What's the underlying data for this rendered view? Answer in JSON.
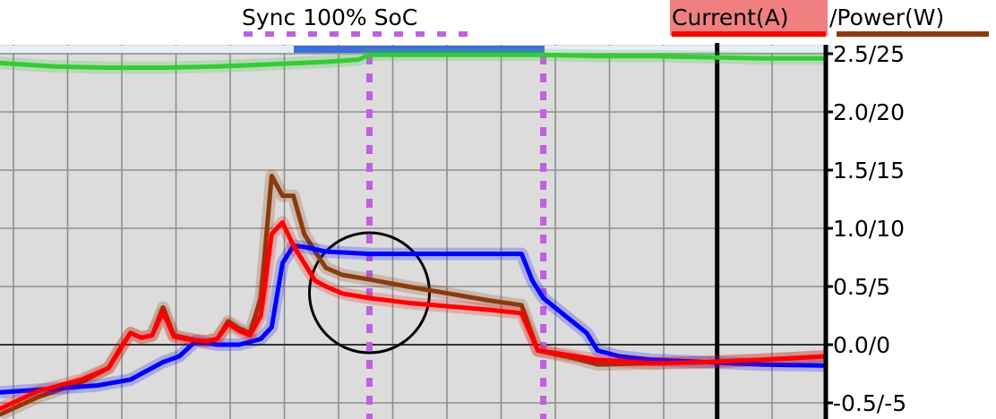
{
  "header": {
    "sync_label": "Sync 100% SoC",
    "legend_current": "Current(A)",
    "legend_power": "/Power(W)"
  },
  "colors": {
    "background": "#dcdcdc",
    "grid": "#8f8f8f",
    "soc": "#33cc33",
    "voltage": "#0000ff",
    "current": "#ff0000",
    "power": "#8b3a0f",
    "sync_marker": "#c060e0",
    "sync_bar": "#3a6fdc",
    "legend_highlight": "#f08080"
  },
  "chart_data": {
    "type": "line",
    "title": "",
    "y_tick_labels": [
      "2.5/25",
      "2.0/20",
      "1.5/15",
      "1.0/10",
      "0.5/5",
      "0.0/0",
      "-0.5/-5"
    ],
    "y_ticks": [
      2.5,
      2.0,
      1.5,
      1.0,
      0.5,
      0.0,
      -0.5
    ],
    "ylim": [
      -0.6,
      2.9
    ],
    "xlim": [
      0,
      15.2
    ],
    "grid": true,
    "sync_range": [
      6.8,
      10.0
    ],
    "now_marker": 13.2,
    "annotation_circle": {
      "x": 6.8,
      "y": 0.4
    },
    "series": [
      {
        "key": "soc",
        "x": [
          0,
          1,
          2,
          3,
          4,
          5,
          6,
          6.6,
          6.8,
          7.5,
          8,
          9,
          10,
          11,
          12,
          13,
          14,
          15.2
        ],
        "values": [
          2.42,
          2.39,
          2.38,
          2.38,
          2.39,
          2.41,
          2.43,
          2.45,
          2.49,
          2.49,
          2.49,
          2.49,
          2.49,
          2.48,
          2.48,
          2.47,
          2.46,
          2.46
        ]
      },
      {
        "key": "voltage",
        "x": [
          0,
          0.6,
          1.2,
          1.8,
          2.4,
          3.0,
          3.3,
          3.6,
          4.0,
          4.4,
          4.8,
          5.0,
          5.2,
          5.4,
          5.6,
          5.8,
          6.0,
          6.4,
          6.8,
          7.5,
          8.5,
          9.0,
          9.6,
          9.8,
          10.0,
          10.4,
          10.8,
          11.0,
          11.4,
          12.0,
          13.0,
          14.0,
          15.2
        ],
        "values": [
          -0.41,
          -0.39,
          -0.37,
          -0.35,
          -0.3,
          -0.15,
          -0.1,
          0.03,
          0.0,
          0.0,
          0.05,
          0.15,
          0.7,
          0.85,
          0.84,
          0.82,
          0.8,
          0.79,
          0.78,
          0.78,
          0.78,
          0.78,
          0.78,
          0.55,
          0.4,
          0.25,
          0.1,
          -0.05,
          -0.1,
          -0.13,
          -0.15,
          -0.17,
          -0.18
        ]
      },
      {
        "key": "current",
        "x": [
          0,
          0.7,
          1.5,
          2.0,
          2.2,
          2.4,
          2.6,
          2.8,
          3.0,
          3.2,
          3.4,
          3.6,
          3.8,
          4.0,
          4.2,
          4.4,
          4.6,
          4.8,
          5.0,
          5.2,
          5.4,
          5.6,
          5.8,
          6.0,
          6.3,
          6.8,
          7.5,
          8.5,
          9.0,
          9.6,
          9.9,
          10.2,
          10.6,
          11.0,
          12.0,
          13.0,
          14.0,
          15.2
        ],
        "values": [
          -0.55,
          -0.4,
          -0.3,
          -0.2,
          -0.05,
          0.1,
          0.06,
          0.08,
          0.28,
          0.07,
          0.05,
          0.04,
          0.03,
          0.05,
          0.18,
          0.12,
          0.08,
          0.25,
          0.95,
          1.05,
          0.85,
          0.7,
          0.55,
          0.5,
          0.44,
          0.4,
          0.36,
          0.32,
          0.3,
          0.27,
          -0.05,
          -0.07,
          -0.1,
          -0.13,
          -0.16,
          -0.15,
          -0.13,
          -0.1
        ]
      },
      {
        "key": "power",
        "x": [
          0,
          0.7,
          1.5,
          2.0,
          2.2,
          2.4,
          2.6,
          2.8,
          3.0,
          3.2,
          3.4,
          3.6,
          3.8,
          4.0,
          4.2,
          4.4,
          4.6,
          4.8,
          5.0,
          5.2,
          5.4,
          5.6,
          5.8,
          6.0,
          6.3,
          6.8,
          7.5,
          8.5,
          9.0,
          9.6,
          9.9,
          10.2,
          10.6,
          11.0,
          12.0,
          13.0,
          14.0,
          15.2
        ],
        "values": [
          -0.6,
          -0.45,
          -0.32,
          -0.2,
          -0.04,
          0.1,
          0.06,
          0.08,
          0.32,
          0.08,
          0.06,
          0.04,
          0.03,
          0.05,
          0.2,
          0.14,
          0.1,
          0.4,
          1.45,
          1.28,
          1.28,
          0.95,
          0.8,
          0.66,
          0.6,
          0.56,
          0.5,
          0.42,
          0.38,
          0.34,
          -0.05,
          -0.08,
          -0.12,
          -0.17,
          -0.16,
          -0.15,
          -0.13,
          -0.1
        ]
      }
    ]
  }
}
